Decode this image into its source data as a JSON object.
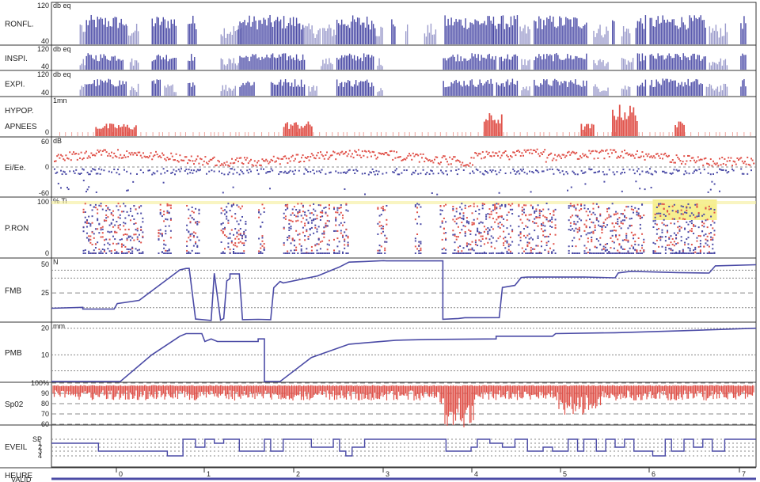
{
  "chart_data": {
    "type": "line",
    "colors": {
      "blue": "#4b4ba6",
      "red": "#e0524a",
      "highlight": "#f3e96a",
      "grid": "#888888"
    },
    "panels": [
      {
        "id": "ronfl",
        "label": "RONFL.",
        "unit": "db eq",
        "ylim": [
          40,
          120
        ],
        "ticks": [
          "120",
          "40"
        ],
        "bursts": [
          [
            1.1,
            2.4,
            "dark"
          ],
          [
            0.9,
            1.1,
            "light"
          ],
          [
            2.4,
            2.8,
            "light"
          ],
          [
            3.2,
            4.0,
            "dark"
          ],
          [
            4.35,
            4.65,
            "dark"
          ],
          [
            5.4,
            6.1,
            "light"
          ],
          [
            5.95,
            7.0,
            "dark"
          ],
          [
            7.0,
            8.05,
            "dark"
          ],
          [
            8.05,
            8.6,
            "light"
          ],
          [
            8.65,
            9.1,
            "light"
          ],
          [
            9.1,
            10.35,
            "dark"
          ],
          [
            10.35,
            10.6,
            "light"
          ],
          [
            10.85,
            11.0,
            "dark"
          ],
          [
            11.3,
            11.4,
            "light"
          ],
          [
            11.9,
            12.3,
            "light"
          ],
          [
            12.55,
            14.1,
            "dark"
          ],
          [
            14.1,
            14.9,
            "dark"
          ],
          [
            14.95,
            15.3,
            "light"
          ],
          [
            15.4,
            17.1,
            "dark"
          ],
          [
            17.3,
            17.8,
            "light"
          ],
          [
            17.9,
            18.0,
            "dark"
          ],
          [
            18.2,
            18.5,
            "light"
          ],
          [
            18.65,
            19.0,
            "dark"
          ],
          [
            19.1,
            20.9,
            "dark"
          ],
          [
            21.0,
            21.6,
            "light"
          ],
          [
            22.0,
            22.2,
            "dark"
          ]
        ]
      },
      {
        "id": "inspi",
        "label": "INSPI.",
        "unit": "db eq",
        "ylim": [
          40,
          120
        ],
        "ticks": [
          "120",
          "40"
        ],
        "bursts": [
          [
            1.1,
            2.3,
            "dark"
          ],
          [
            0.9,
            1.1,
            "light"
          ],
          [
            2.5,
            2.8,
            "light"
          ],
          [
            3.2,
            4.0,
            "dark"
          ],
          [
            4.35,
            4.6,
            "dark"
          ],
          [
            5.4,
            6.0,
            "light"
          ],
          [
            6.0,
            7.0,
            "dark"
          ],
          [
            7.0,
            8.1,
            "dark"
          ],
          [
            8.6,
            9.0,
            "light"
          ],
          [
            9.1,
            10.3,
            "dark"
          ],
          [
            10.4,
            10.6,
            "light"
          ],
          [
            12.5,
            14.2,
            "dark"
          ],
          [
            14.3,
            14.9,
            "dark"
          ],
          [
            15.0,
            15.3,
            "light"
          ],
          [
            15.4,
            17.1,
            "dark"
          ],
          [
            17.3,
            17.8,
            "light"
          ],
          [
            18.2,
            18.6,
            "light"
          ],
          [
            18.7,
            19.0,
            "dark"
          ],
          [
            19.1,
            20.9,
            "dark"
          ],
          [
            21.0,
            21.6,
            "light"
          ],
          [
            22.0,
            22.2,
            "dark"
          ]
        ]
      },
      {
        "id": "expi",
        "label": "EXPI.",
        "unit": "db eq",
        "ylim": [
          40,
          120
        ],
        "ticks": [
          "120",
          "40"
        ],
        "bursts": [
          [
            1.1,
            2.4,
            "dark"
          ],
          [
            0.9,
            1.1,
            "light"
          ],
          [
            2.5,
            2.8,
            "light"
          ],
          [
            3.2,
            3.5,
            "dark"
          ],
          [
            3.6,
            4.0,
            "light"
          ],
          [
            4.35,
            4.6,
            "dark"
          ],
          [
            5.4,
            5.9,
            "light"
          ],
          [
            6.0,
            6.5,
            "dark"
          ],
          [
            7.0,
            8.1,
            "dark"
          ],
          [
            8.2,
            8.5,
            "light"
          ],
          [
            9.1,
            10.3,
            "dark"
          ],
          [
            10.4,
            10.6,
            "light"
          ],
          [
            12.5,
            14.1,
            "dark"
          ],
          [
            14.2,
            14.9,
            "dark"
          ],
          [
            15.0,
            15.3,
            "light"
          ],
          [
            15.4,
            17.1,
            "dark"
          ],
          [
            17.3,
            17.8,
            "light"
          ],
          [
            18.2,
            18.5,
            "light"
          ],
          [
            18.7,
            19.0,
            "dark"
          ],
          [
            19.1,
            20.8,
            "dark"
          ],
          [
            20.9,
            21.6,
            "light"
          ],
          [
            22.0,
            22.2,
            "dark"
          ]
        ]
      },
      {
        "id": "apnees",
        "label": "HYPOP.",
        "label2": "APNEES",
        "unit": "1mn",
        "ticks": [
          "0"
        ],
        "events": [
          [
            1.4,
            2.7,
            0.3
          ],
          [
            7.4,
            8.3,
            0.35
          ],
          [
            13.8,
            14.4,
            0.55
          ],
          [
            16.9,
            17.3,
            0.3
          ],
          [
            17.9,
            18.7,
            0.75
          ],
          [
            19.9,
            20.2,
            0.35
          ]
        ]
      },
      {
        "id": "eiee",
        "label": "Ei/Ee.",
        "unit": "dB",
        "ylim": [
          -60,
          60
        ],
        "ticks": [
          "60",
          "0",
          "-60"
        ]
      },
      {
        "id": "pron",
        "label": "P.RON",
        "unit": "% Ti",
        "ylim": [
          0,
          100
        ],
        "ticks": [
          "100",
          "0"
        ],
        "highlight": [
          [
            19.2,
            21.25
          ]
        ],
        "active": [
          [
            1.0,
            2.9
          ],
          [
            3.4,
            3.8
          ],
          [
            4.3,
            4.7
          ],
          [
            5.4,
            6.2
          ],
          [
            6.6,
            6.8
          ],
          [
            7.4,
            8.9
          ],
          [
            9.0,
            9.5
          ],
          [
            10.4,
            10.7
          ],
          [
            11.6,
            11.8
          ],
          [
            12.4,
            12.6
          ],
          [
            12.8,
            14.7
          ],
          [
            14.9,
            16.1
          ],
          [
            16.5,
            16.9
          ],
          [
            17.0,
            18.9
          ],
          [
            19.2,
            21.2
          ]
        ]
      },
      {
        "id": "fmb",
        "label": "FMB",
        "unit": "N",
        "ylim": [
          0,
          55
        ],
        "ticks": [
          "50",
          "25"
        ],
        "dashed": [
          25
        ]
      },
      {
        "id": "pmb",
        "label": "PMB",
        "unit": "mm",
        "ylim": [
          0,
          22
        ],
        "ticks": [
          "20",
          "10"
        ]
      },
      {
        "id": "spo2",
        "label": "Sp02",
        "ylim": [
          60,
          100
        ],
        "ticks": [
          "100%",
          "90",
          "80",
          "70",
          "60"
        ]
      },
      {
        "id": "stages",
        "label": "EVEIL",
        "ticks": [
          "SP",
          "1",
          "2",
          "3",
          "4"
        ]
      }
    ],
    "xlabel": "HEURE",
    "xlabel_overlap": "VALID",
    "x_ticks": [
      "0",
      "1",
      "2",
      "3",
      "4",
      "5",
      "6",
      "7"
    ]
  }
}
